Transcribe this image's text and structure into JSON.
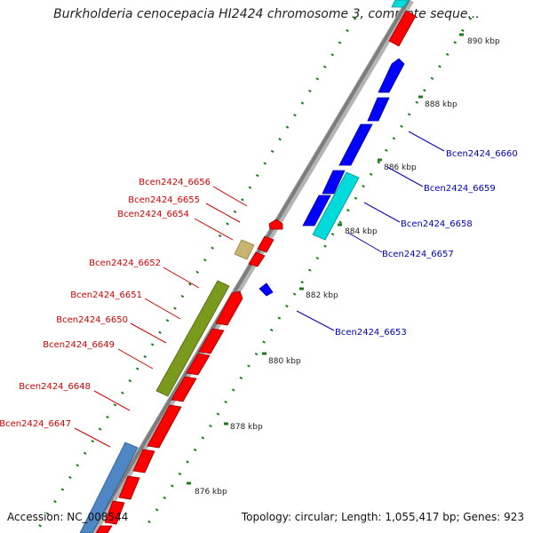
{
  "title": "Burkholderia cenocepacia HI2424 chromosome 3, complete seque...",
  "footer": {
    "accession": "Accession: NC_008544",
    "stats": "Topology: circular; Length: 1,055,417 bp; Genes: 923"
  },
  "colors": {
    "backbone": "#8c8c8c",
    "cds_forward": "#ff0000",
    "cds_reverse": "#0000ff",
    "cyan_feature": "#00d8d8",
    "olive_feature": "#7a9a1e",
    "tan_feature": "#c8b46e",
    "steel_feature": "#4f86c6",
    "forward_label": "#cc0000",
    "reverse_label": "#0000bb",
    "tick": "#1a7f1a"
  },
  "ruler": {
    "unit": "kbp",
    "labels": [
      "876 kbp",
      "878 kbp",
      "880 kbp",
      "882 kbp",
      "884 kbp",
      "886 kbp",
      "888 kbp",
      "890 kbp"
    ]
  },
  "forward_genes": [
    "Bcen2424_6656",
    "Bcen2424_6655",
    "Bcen2424_6654",
    "Bcen2424_6652",
    "Bcen2424_6651",
    "Bcen2424_6650",
    "Bcen2424_6649",
    "Bcen2424_6648",
    "Bcen2424_6647"
  ],
  "reverse_genes": [
    "Bcen2424_6660",
    "Bcen2424_6659",
    "Bcen2424_6658",
    "Bcen2424_6657",
    "Bcen2424_6653"
  ]
}
